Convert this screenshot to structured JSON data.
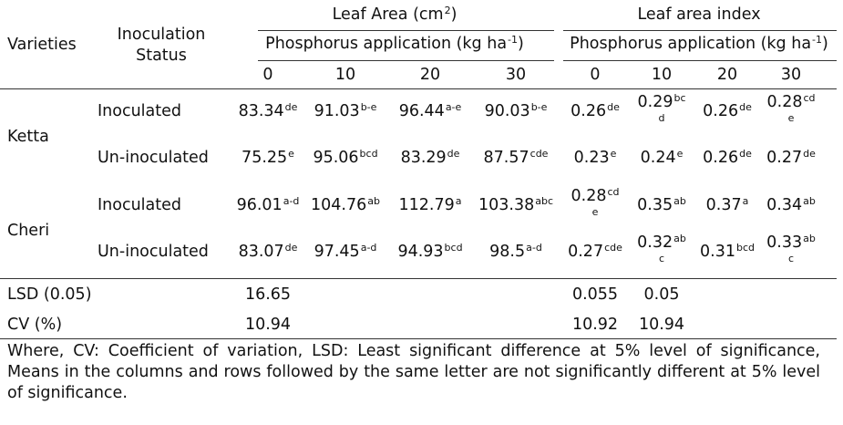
{
  "header": {
    "varieties": "Varieties",
    "inoculation_line1": "Inoculation",
    "inoculation_line2": "Status",
    "leaf_area_base": "Leaf Area (cm",
    "leaf_area_sup": "2",
    "leaf_area_close": ")",
    "leaf_area_index": "Leaf area index",
    "phosphorus_base": "Phosphorus application (kg ha",
    "phosphorus_sup": "-1",
    "phosphorus_close": ")",
    "rates": [
      "0",
      "10",
      "20",
      "30"
    ]
  },
  "rows": [
    {
      "variety": "Ketta",
      "status": "Inoculated",
      "leaf_area": [
        {
          "v": "83.34",
          "s": "de"
        },
        {
          "v": "91.03",
          "s": "b-e"
        },
        {
          "v": "96.44",
          "s": "a-e"
        },
        {
          "v": "90.03",
          "s": "b-e"
        }
      ],
      "lai": [
        {
          "v": "0.26",
          "s": "de"
        },
        {
          "v": "0.29",
          "s": "bc",
          "s2": "d"
        },
        {
          "v": "0.26",
          "s": "de"
        },
        {
          "v": "0.28",
          "s": "cd",
          "s2": "e"
        }
      ]
    },
    {
      "variety": "",
      "status": "Un-inoculated",
      "leaf_area": [
        {
          "v": "75.25",
          "s": "e"
        },
        {
          "v": "95.06",
          "s": "bcd"
        },
        {
          "v": "83.29",
          "s": "de"
        },
        {
          "v": "87.57",
          "s": "cde"
        }
      ],
      "lai": [
        {
          "v": "0.23",
          "s": "e"
        },
        {
          "v": "0.24",
          "s": "e"
        },
        {
          "v": "0.26",
          "s": "de"
        },
        {
          "v": "0.27",
          "s": "de"
        }
      ]
    },
    {
      "variety": "Cheri",
      "status": "Inoculated",
      "leaf_area": [
        {
          "v": "96.01",
          "s": "a-d"
        },
        {
          "v": "104.76",
          "s": "ab"
        },
        {
          "v": "112.79",
          "s": "a"
        },
        {
          "v": "103.38",
          "s": "abc"
        }
      ],
      "lai": [
        {
          "v": "0.28",
          "s": "cd",
          "s2": "e"
        },
        {
          "v": "0.35",
          "s": "ab"
        },
        {
          "v": "0.37",
          "s": "a"
        },
        {
          "v": "0.34",
          "s": "ab"
        }
      ]
    },
    {
      "variety": "",
      "status": "Un-inoculated",
      "leaf_area": [
        {
          "v": "83.07",
          "s": "de"
        },
        {
          "v": "97.45",
          "s": "a-d"
        },
        {
          "v": "94.93",
          "s": "bcd"
        },
        {
          "v": "98.5",
          "s": "a-d"
        }
      ],
      "lai": [
        {
          "v": "0.27",
          "s": "cde"
        },
        {
          "v": "0.32",
          "s": "ab",
          "s2": "c"
        },
        {
          "v": "0.31",
          "s": "bcd"
        },
        {
          "v": "0.33",
          "s": "ab",
          "s2": "c"
        }
      ]
    }
  ],
  "stats": {
    "lsd_label": "LSD (0.05)",
    "lsd_leaf_area": "16.65",
    "lsd_lai_0": "0.055",
    "lsd_lai_10": "0.05",
    "cv_label": "CV (%)",
    "cv_leaf_area": "10.94",
    "cv_lai_0": "10.92",
    "cv_lai_10": "10.94"
  },
  "footnote": "Where, CV: Coefficient of variation, LSD: Least significant difference at 5% level of significance, Means in the columns and rows followed by the same letter are not significantly different at 5% level of significance."
}
